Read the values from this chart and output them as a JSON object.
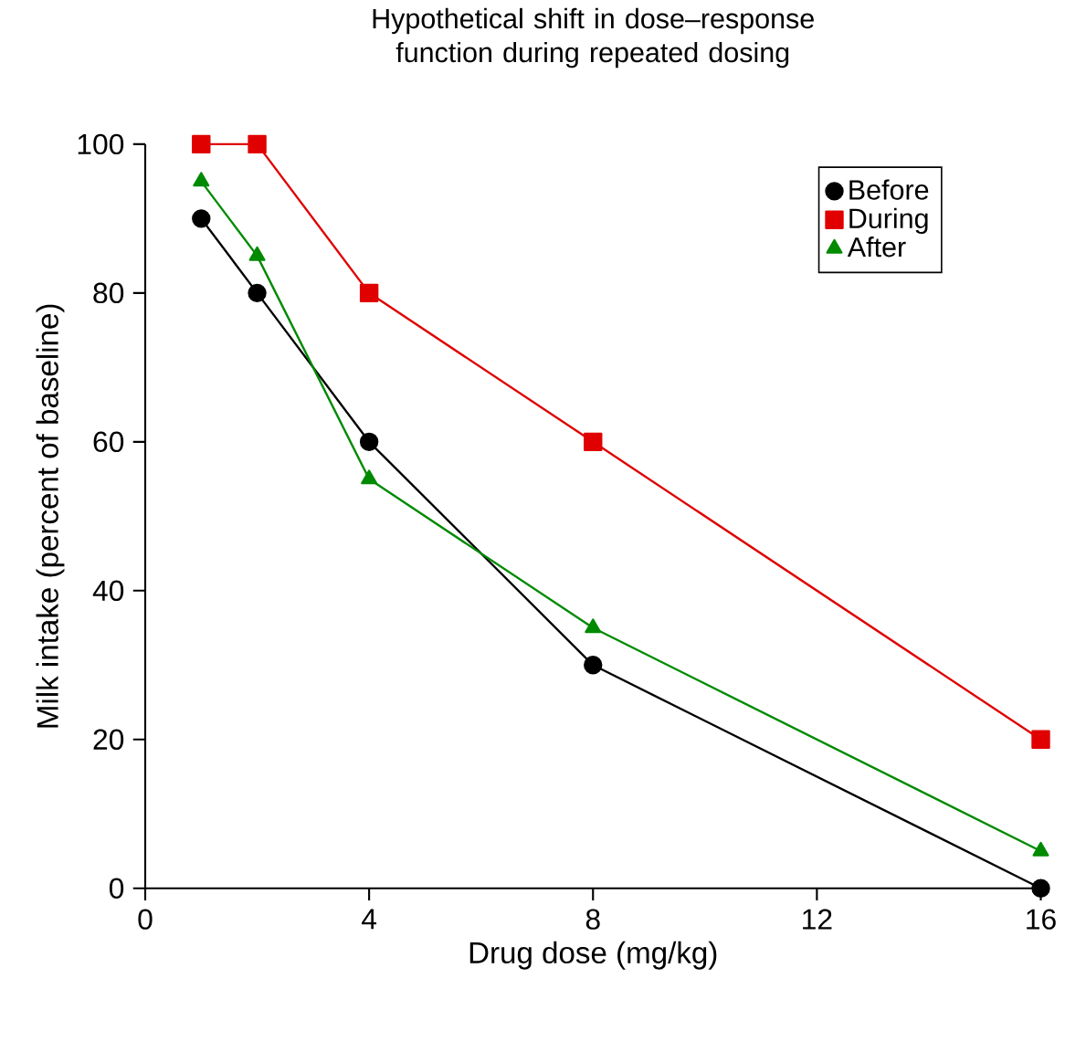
{
  "chart_data": {
    "type": "line",
    "title": "Hypothetical shift in dose–response function during repeated dosing",
    "xlabel": "Drug dose (mg/kg)",
    "ylabel": "Milk intake (percent of baseline)",
    "x": [
      1,
      2,
      4,
      8,
      16
    ],
    "series": [
      {
        "name": "Before",
        "color": "#000000",
        "marker": "circle",
        "values": [
          90,
          80,
          60,
          30,
          0
        ]
      },
      {
        "name": "During",
        "color": "#e00000",
        "marker": "square",
        "values": [
          100,
          100,
          80,
          60,
          20
        ]
      },
      {
        "name": "After",
        "color": "#008a00",
        "marker": "triangle",
        "values": [
          95,
          85,
          55,
          35,
          5
        ]
      }
    ],
    "xlim": [
      0,
      16
    ],
    "xticks": [
      0,
      4,
      8,
      12,
      16
    ],
    "ylim": [
      0,
      100
    ],
    "yticks": [
      0,
      20,
      40,
      60,
      80,
      100
    ],
    "grid": false,
    "legend": "top right",
    "line_style": "solid"
  }
}
